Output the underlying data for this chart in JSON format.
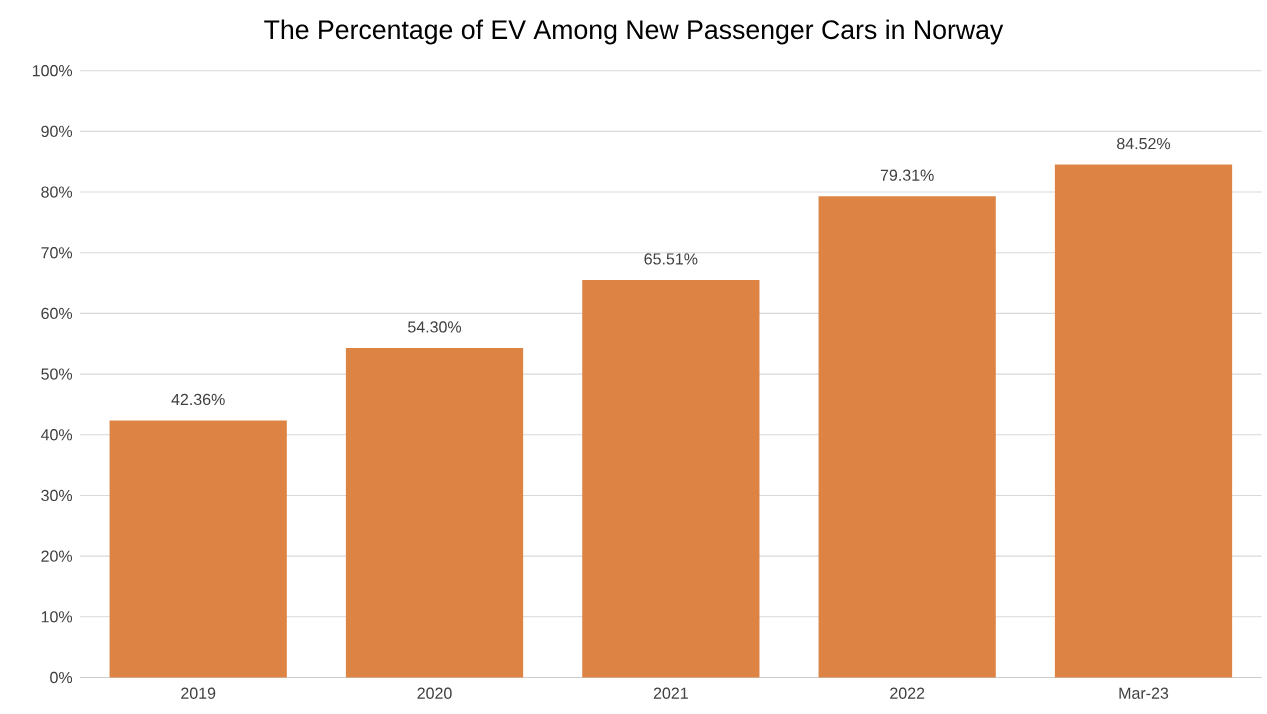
{
  "chart_data": {
    "type": "bar",
    "title": "The Percentage of EV Among New Passenger Cars in Norway",
    "categories": [
      "2019",
      "2020",
      "2021",
      "2022",
      "Mar-23"
    ],
    "values": [
      42.36,
      54.3,
      65.51,
      79.31,
      84.52
    ],
    "value_labels": [
      "42.36%",
      "54.30%",
      "65.51%",
      "79.31%",
      "84.52%"
    ],
    "color": "#dd8445",
    "ylim": [
      0,
      100
    ],
    "yticks": [
      {
        "value": 0,
        "label": "0%"
      },
      {
        "value": 10,
        "label": "10%"
      },
      {
        "value": 20,
        "label": "20%"
      },
      {
        "value": 30,
        "label": "30%"
      },
      {
        "value": 40,
        "label": "40%"
      },
      {
        "value": 50,
        "label": "50%"
      },
      {
        "value": 60,
        "label": "60%"
      },
      {
        "value": 70,
        "label": "70%"
      },
      {
        "value": 80,
        "label": "80%"
      },
      {
        "value": 90,
        "label": "90%"
      },
      {
        "value": 100,
        "label": "100%"
      }
    ],
    "grid": "y"
  }
}
